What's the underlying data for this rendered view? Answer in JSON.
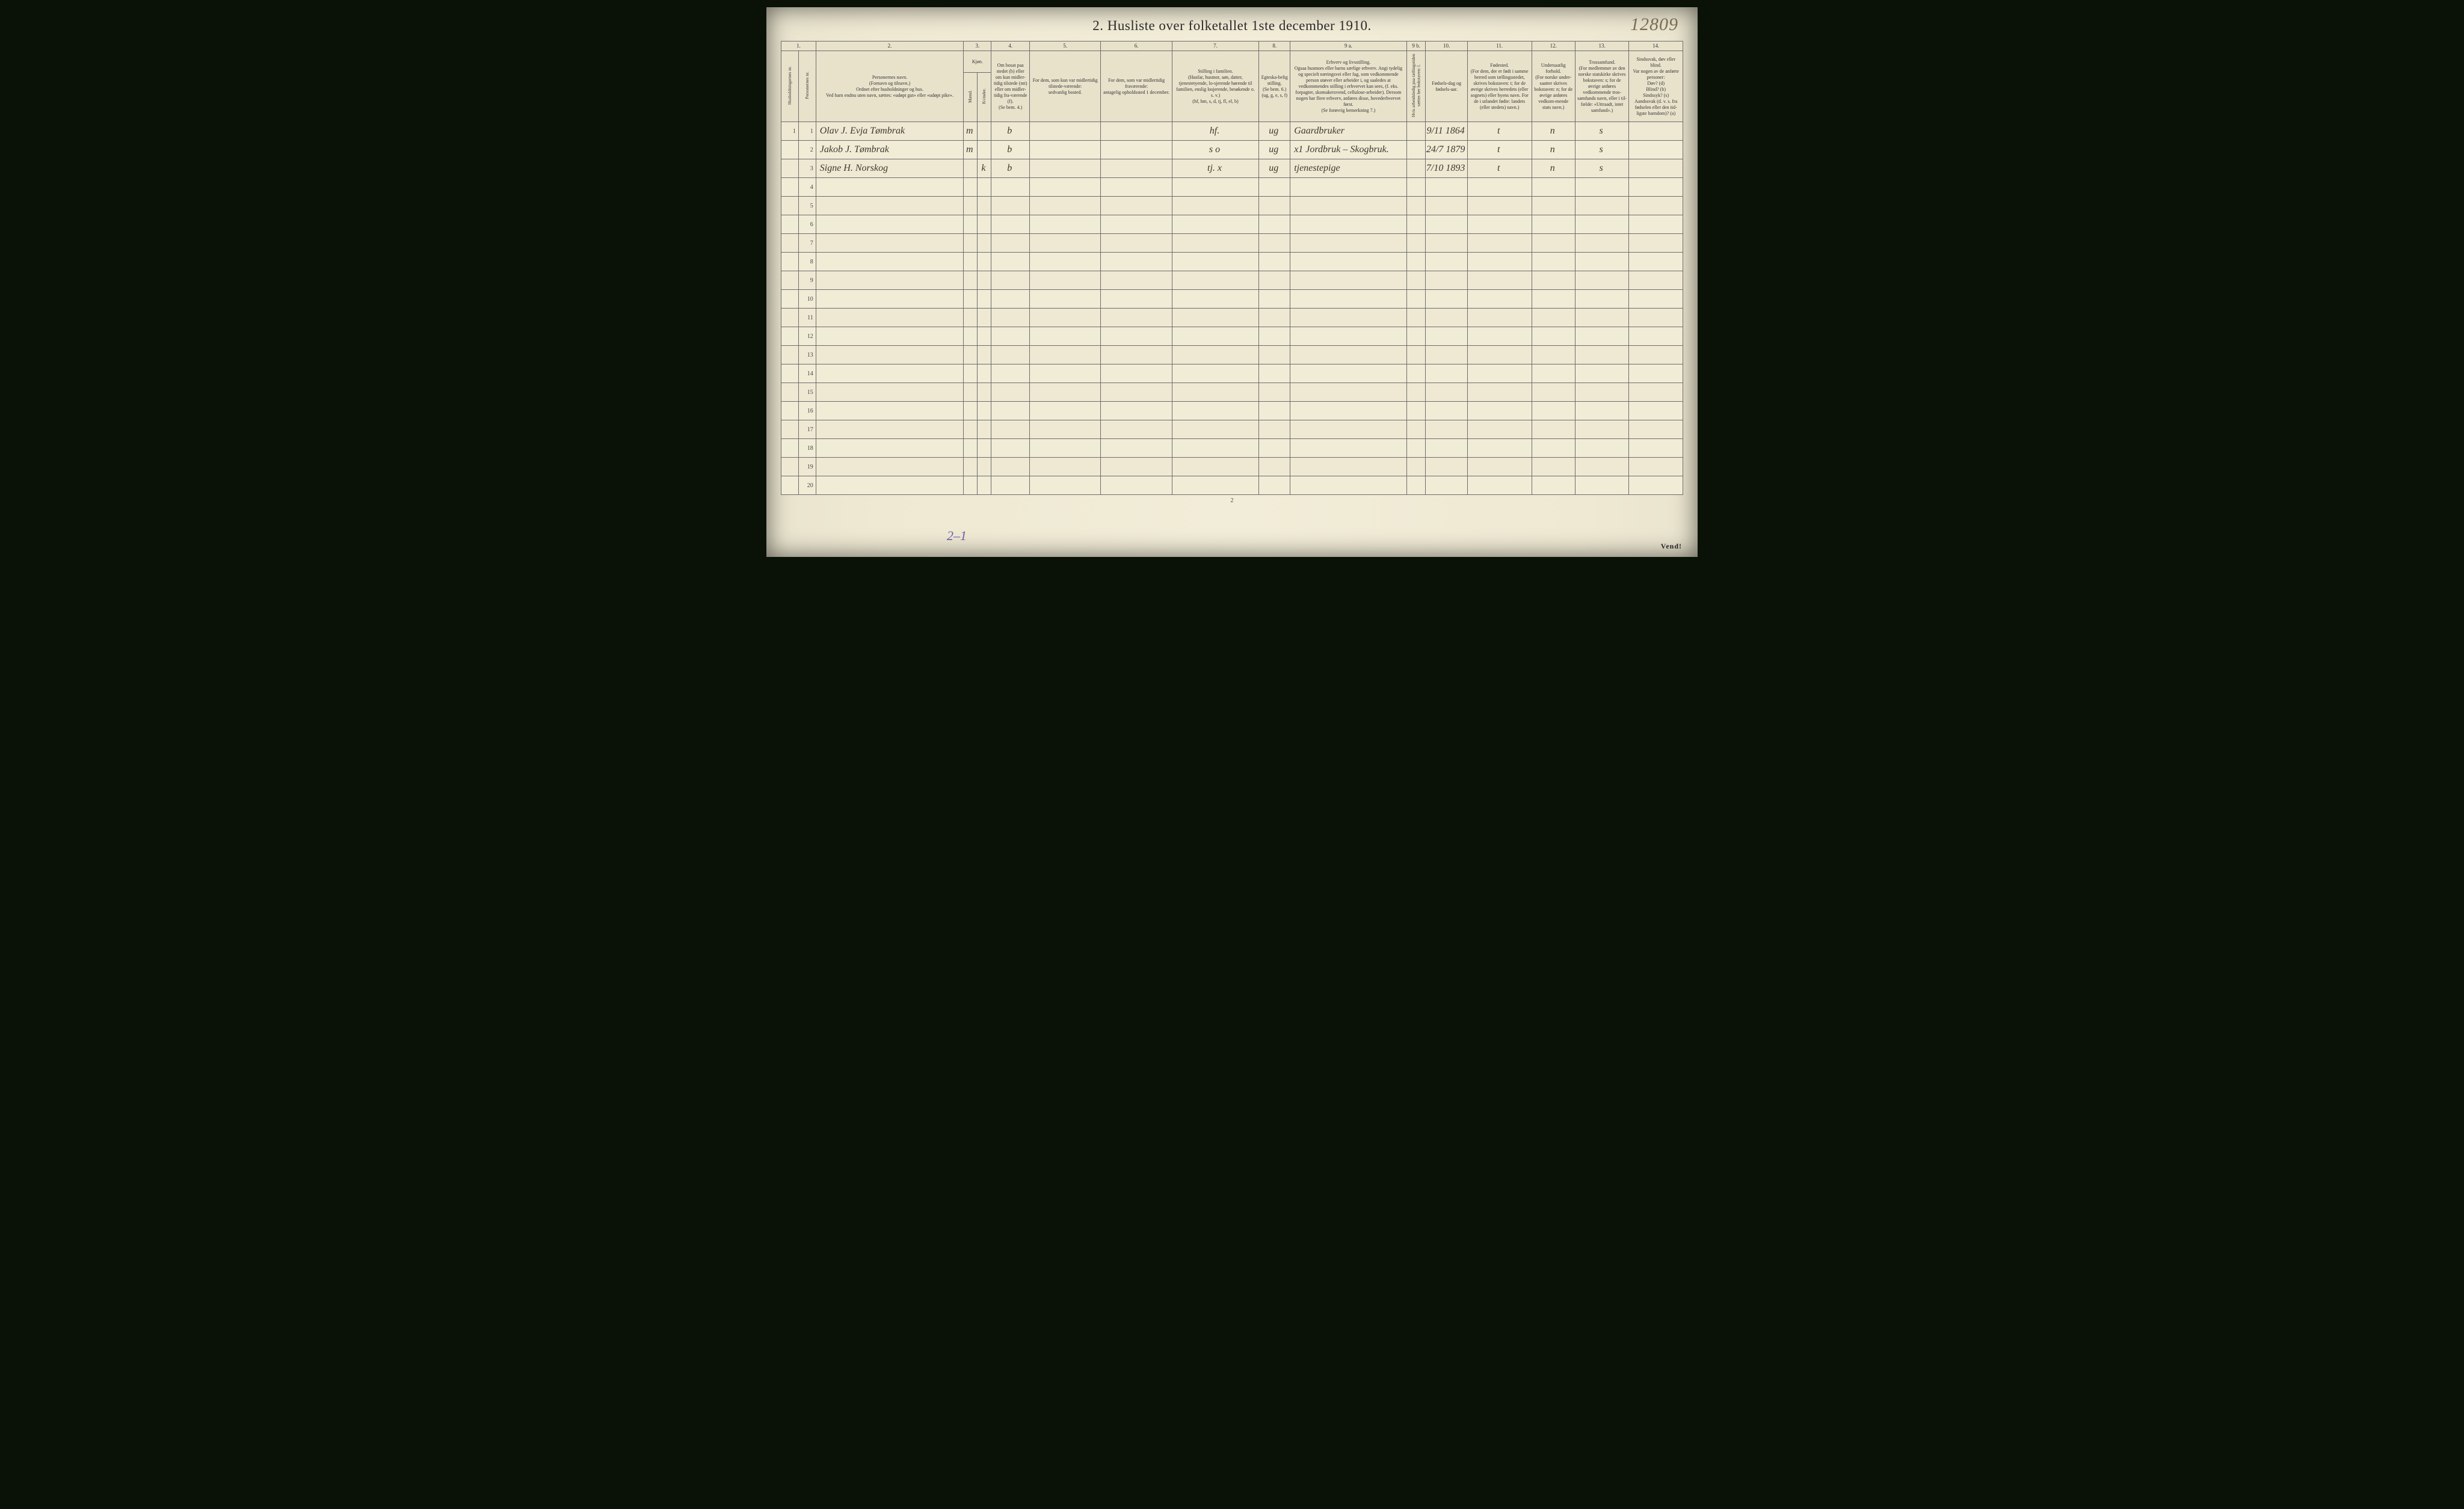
{
  "title": "2.  Husliste over folketallet 1ste december 1910.",
  "page_ref": "12809",
  "footer_page_num": "2",
  "footer_note": "2–1",
  "vend": "Vend!",
  "colors": {
    "page_bg": "#f1ecd6",
    "ink": "#2a2a2a",
    "handwriting": "#3d382c",
    "pencil_ref": "#7a6b52",
    "purple_note": "#6a5eae",
    "rule": "#6b6b6b",
    "scan_bg": "#0a1208"
  },
  "column_widths_pct": [
    2.0,
    2.0,
    17.0,
    1.6,
    1.6,
    4.4,
    8.2,
    8.2,
    10.0,
    3.6,
    13.4,
    2.2,
    4.8,
    7.4,
    5.0,
    6.2,
    6.2
  ],
  "col_numbers": [
    "1.",
    "2.",
    "3.",
    "4.",
    "5.",
    "6.",
    "7.",
    "8.",
    "9 a.",
    "9 b.",
    "10.",
    "11.",
    "12.",
    "13.",
    "14."
  ],
  "headers": {
    "c1": "Husholdningernes nr.",
    "c1b": "Personernes nr.",
    "c2": "Personernes navn.\n(Fornavn og tilnavn.)\nOrdnet efter husholdninger og hus.\nVed barn endnu uten navn, sættes: «udøpt gut» eller «udøpt pike».",
    "c3": "Kjøn.",
    "c3a": "Mænd.",
    "c3b": "Kvinder.",
    "c3note": "m.  k.",
    "c4": "Om bosat paa stedet (b) eller om kun midler-tidig tilstede (mt) eller om midler-tidig fra-værende (f).\n(Se bem. 4.)",
    "c5": "For dem, som kun var midlertidig tilstede-værende:\nsedvanlig bosted.",
    "c6": "For dem, som var midlertidig fraværende:\nantagelig opholdssted 1 december.",
    "c7": "Stilling i familien.\n(Husfar, husmor, søn, datter, tjenestetyende, lo-sjerende hørende til familien, enslig losjerende, besøkende o. s. v.)\n(hf, hm, s, d, tj, fl, el, b)",
    "c8": "Egteska-belig stilling.\n(Se bem. 6.)\n(ug, g, e, s, f)",
    "c9a": "Erhverv og livsstilling.\nOgsaa husmors eller barns særlige erhverv. Angi tydelig og specielt næringsvei eller fag, som vedkommende person utøver eller arbeider i, og saaledes at vedkommendes stilling i erhvervet kan sees, (f. eks. forpagter, skomakersvend, cellulose-arbeider). Dersom nogen har flere erhverv, anføres disse, hovederhvervet først.\n(Se forøvrig bemerkning 7.)",
    "c9b": "Hvis arbeidsledig paa tællingstiden sættes her bokstaven: l.",
    "c10": "Fødsels-dag og fødsels-aar.",
    "c11": "Fødested.\n(For dem, der er født i samme herred som tællingsstedet, skrives bokstaven: t; for de øvrige skrives herredets (eller sognets) eller byens navn. For de i utlandet fødte: landets (eller stedets) navn.)",
    "c12": "Undersaatlig forhold.\n(For norske under-saatter skrives bokstaven: n; for de øvrige anføres vedkom-mende stats navn.)",
    "c13": "Trossamfund.\n(For medlemmer av den norske statskirke skrives bokstaven: s; for de øvrige anføres vedkommende tros-samfunds navn, eller i til-fælde: «Uttraadt, intet samfund».)",
    "c14": "Sindssvak, døv eller blind.\nVar nogen av de anførte personer:\nDøv?     (d)\nBlind?    (b)\nSindssyk? (s)\nAandssvak (d. v. s. fra fødselen eller den tid-ligste barndom)? (a)"
  },
  "rows": [
    {
      "n": "1",
      "hh": "1",
      "name": "Olav J. Evja Tømbrak",
      "mk": "m",
      "res": "b",
      "c5": "",
      "c6": "",
      "fam": "hf.",
      "egte": "ug",
      "erhv": "Gaardbruker",
      "dob": "9/11 1864",
      "fsted": "t",
      "und": "n",
      "tros": "s",
      "c14": ""
    },
    {
      "n": "2",
      "hh": "",
      "name": "Jakob J. Tømbrak",
      "mk": "m",
      "res": "b",
      "c5": "",
      "c6": "",
      "fam": "s    o",
      "egte": "ug",
      "erhv": "x1  Jordbruk – Skogbruk.",
      "dob": "24/7 1879",
      "fsted": "t",
      "und": "n",
      "tros": "s",
      "c14": ""
    },
    {
      "n": "3",
      "hh": "",
      "name": "Signe H. Norskog",
      "mk": "k",
      "res": "b",
      "c5": "",
      "c6": "",
      "fam": "tj.   x",
      "egte": "ug",
      "erhv": "tjenestepige",
      "dob": "7/10 1893",
      "fsted": "t",
      "und": "n",
      "tros": "s",
      "c14": ""
    }
  ],
  "blank_rows": 17,
  "row_labels": [
    "1",
    "2",
    "3",
    "4",
    "5",
    "6",
    "7",
    "8",
    "9",
    "10",
    "11",
    "12",
    "13",
    "14",
    "15",
    "16",
    "17",
    "18",
    "19",
    "20"
  ]
}
